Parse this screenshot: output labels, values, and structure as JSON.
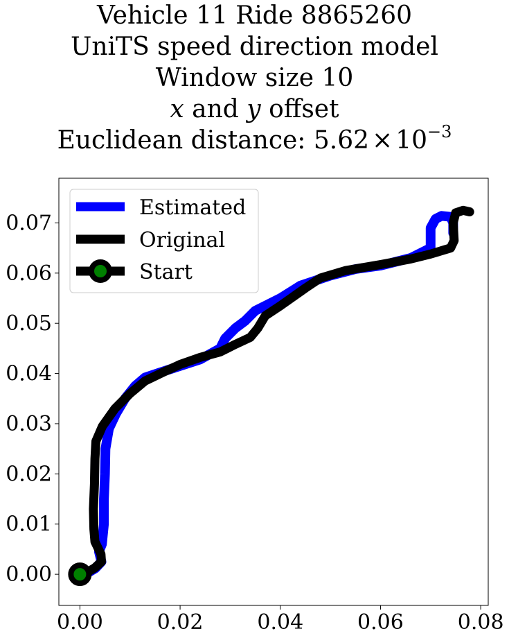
{
  "chart_data": {
    "type": "line",
    "title_lines": [
      "Vehicle 11 Ride 8865260",
      "UniTS speed direction model",
      "Window size 10"
    ],
    "title_offset": {
      "x_var": "x",
      "and": " and ",
      "y_var": "y",
      "suffix": " offset"
    },
    "title_distance": {
      "prefix": "Euclidean distance: ",
      "mantissa": "5.62",
      "times": "×",
      "base": "10",
      "exponent": "−3"
    },
    "xlim": [
      -0.0042,
      0.0815
    ],
    "ylim": [
      -0.0062,
      0.0789
    ],
    "xticks": [
      {
        "value": 0.0,
        "label": "0.00"
      },
      {
        "value": 0.02,
        "label": "0.02"
      },
      {
        "value": 0.04,
        "label": "0.04"
      },
      {
        "value": 0.06,
        "label": "0.06"
      },
      {
        "value": 0.08,
        "label": "0.08"
      }
    ],
    "yticks": [
      {
        "value": 0.0,
        "label": "0.00"
      },
      {
        "value": 0.01,
        "label": "0.01"
      },
      {
        "value": 0.02,
        "label": "0.02"
      },
      {
        "value": 0.03,
        "label": "0.03"
      },
      {
        "value": 0.04,
        "label": "0.04"
      },
      {
        "value": 0.05,
        "label": "0.05"
      },
      {
        "value": 0.06,
        "label": "0.06"
      },
      {
        "value": 0.07,
        "label": "0.07"
      }
    ],
    "legend_position": "upper-left",
    "grid": false,
    "series": [
      {
        "name": "Estimated",
        "color": "#0000ff",
        "points": [
          [
            0.0,
            0.0
          ],
          [
            0.0016,
            0.0003
          ],
          [
            0.0031,
            0.0012
          ],
          [
            0.0043,
            0.0025
          ],
          [
            0.0038,
            0.0045
          ],
          [
            0.0044,
            0.006
          ],
          [
            0.0048,
            0.01
          ],
          [
            0.0048,
            0.015
          ],
          [
            0.005,
            0.02
          ],
          [
            0.0051,
            0.025
          ],
          [
            0.0058,
            0.029
          ],
          [
            0.0072,
            0.032
          ],
          [
            0.009,
            0.035
          ],
          [
            0.011,
            0.0375
          ],
          [
            0.013,
            0.0392
          ],
          [
            0.016,
            0.0402
          ],
          [
            0.02,
            0.0415
          ],
          [
            0.024,
            0.0428
          ],
          [
            0.028,
            0.045
          ],
          [
            0.029,
            0.047
          ],
          [
            0.031,
            0.049
          ],
          [
            0.033,
            0.0505
          ],
          [
            0.035,
            0.0525
          ],
          [
            0.037,
            0.0535
          ],
          [
            0.04,
            0.055
          ],
          [
            0.044,
            0.0575
          ],
          [
            0.05,
            0.0595
          ],
          [
            0.055,
            0.0608
          ],
          [
            0.06,
            0.0615
          ],
          [
            0.066,
            0.063
          ],
          [
            0.07,
            0.065
          ],
          [
            0.07,
            0.069
          ],
          [
            0.071,
            0.0708
          ],
          [
            0.0722,
            0.0714
          ],
          [
            0.074,
            0.0712
          ],
          [
            0.0745,
            0.07
          ],
          [
            0.0745,
            0.068
          ]
        ]
      },
      {
        "name": "Original",
        "color": "#000000",
        "points": [
          [
            0.0,
            0.0
          ],
          [
            0.0015,
            0.0004
          ],
          [
            0.003,
            0.0013
          ],
          [
            0.0043,
            0.0025
          ],
          [
            0.0042,
            0.004
          ],
          [
            0.003,
            0.0065
          ],
          [
            0.0028,
            0.009
          ],
          [
            0.0027,
            0.013
          ],
          [
            0.0029,
            0.018
          ],
          [
            0.003,
            0.023
          ],
          [
            0.0032,
            0.0265
          ],
          [
            0.0045,
            0.0295
          ],
          [
            0.007,
            0.033
          ],
          [
            0.01,
            0.036
          ],
          [
            0.013,
            0.0385
          ],
          [
            0.0165,
            0.0402
          ],
          [
            0.02,
            0.0418
          ],
          [
            0.024,
            0.0432
          ],
          [
            0.028,
            0.0443
          ],
          [
            0.031,
            0.0458
          ],
          [
            0.034,
            0.0472
          ],
          [
            0.0355,
            0.049
          ],
          [
            0.037,
            0.0515
          ],
          [
            0.04,
            0.0535
          ],
          [
            0.045,
            0.057
          ],
          [
            0.048,
            0.059
          ],
          [
            0.053,
            0.0605
          ],
          [
            0.06,
            0.0617
          ],
          [
            0.066,
            0.0628
          ],
          [
            0.07,
            0.0638
          ],
          [
            0.074,
            0.065
          ],
          [
            0.0747,
            0.0665
          ],
          [
            0.0745,
            0.07
          ],
          [
            0.075,
            0.072
          ],
          [
            0.0765,
            0.0725
          ],
          [
            0.0778,
            0.0722
          ]
        ]
      }
    ],
    "start": {
      "name": "Start",
      "x": 0.0,
      "y": 0.0,
      "edge_color": "#000000",
      "face_color": "#008000"
    }
  }
}
